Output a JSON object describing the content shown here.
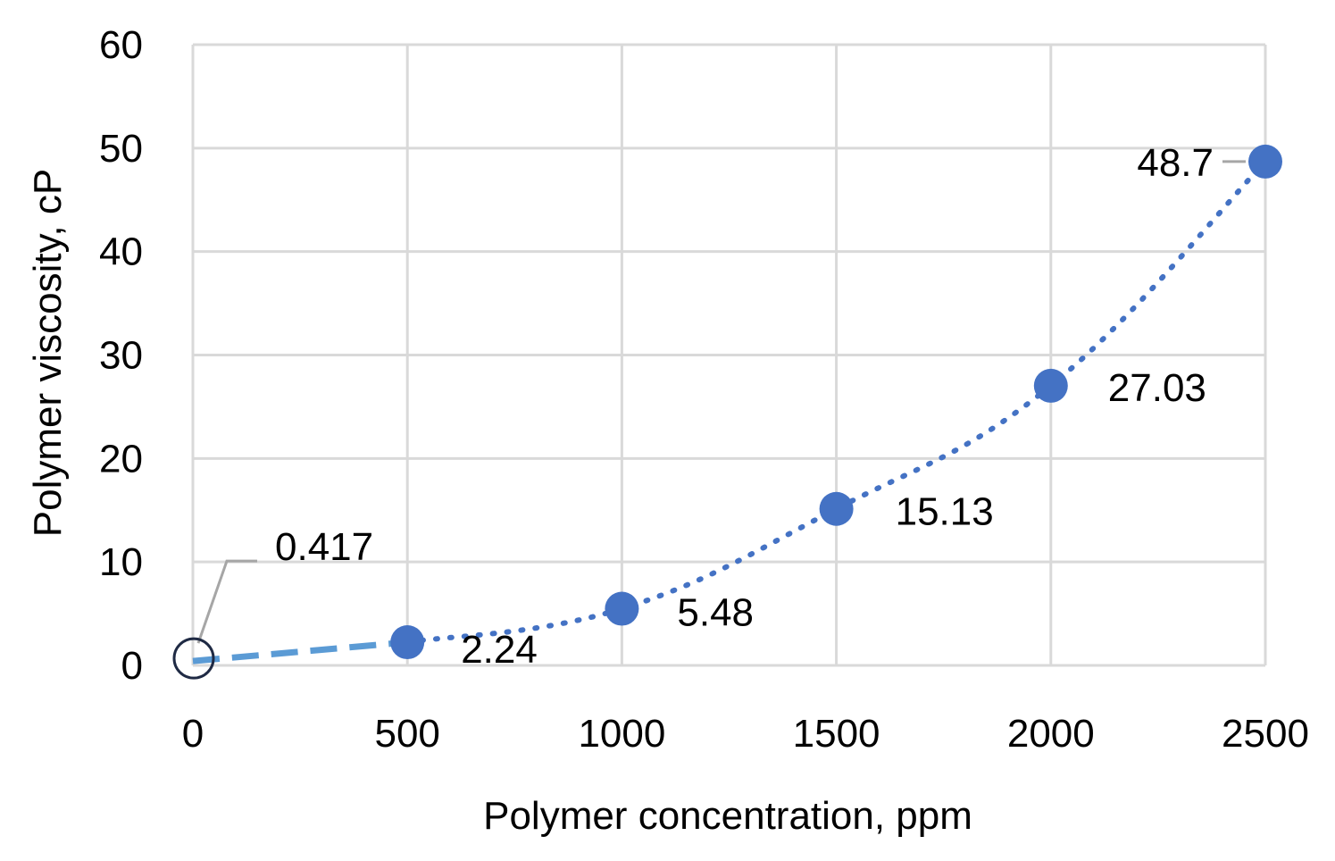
{
  "chart_data": {
    "type": "scatter",
    "title": "",
    "xlabel": "Polymer concentration, ppm",
    "ylabel": "Polymer viscosity, cP",
    "xlim": [
      0,
      2500
    ],
    "ylim": [
      0,
      60
    ],
    "x_ticks": [
      "0",
      "500",
      "1000",
      "1500",
      "2000",
      "2500"
    ],
    "y_ticks": [
      "0",
      "10",
      "20",
      "30",
      "40",
      "50",
      "60"
    ],
    "grid": true,
    "legend": "none",
    "x": [
      0,
      500,
      1000,
      1500,
      2000,
      2500
    ],
    "values": [
      0.417,
      2.24,
      5.48,
      15.13,
      27.03,
      48.7
    ],
    "data_labels": [
      "0.417",
      "2.24",
      "5.48",
      "15.13",
      "27.03",
      "48.7"
    ],
    "colors": {
      "point": "#4472c4",
      "dotted_line": "#4472c4",
      "dashed_line": "#5b9bd5",
      "highlight_circle": "#1f2a44",
      "leader_line": "#a6a6a6",
      "grid": "#d9d9d9"
    }
  }
}
